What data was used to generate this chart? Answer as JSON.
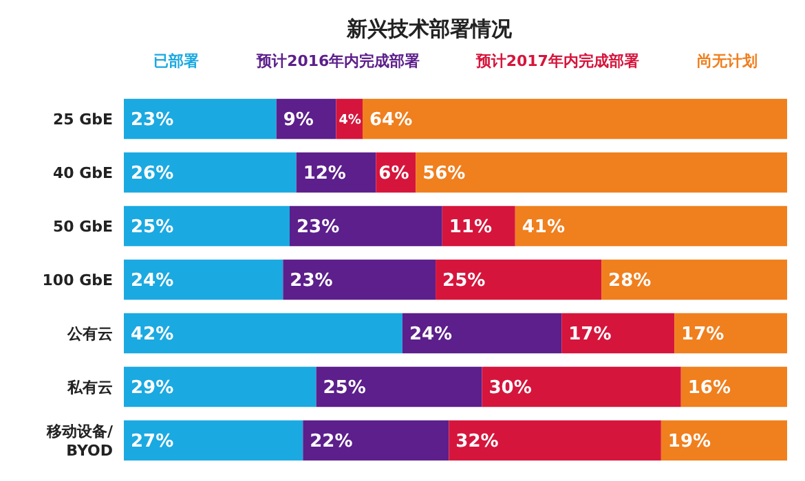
{
  "chart_data": {
    "type": "bar",
    "orientation": "horizontal",
    "stacked": true,
    "title": "新兴技术部署情况",
    "legend": "top",
    "categories": [
      "25 GbE",
      "40 GbE",
      "50 GbE",
      "100 GbE",
      "公有云",
      "私有云",
      "移动设备/BYOD"
    ],
    "series": [
      {
        "name": "已部署",
        "color": "#1ba9e1",
        "values": [
          23,
          26,
          25,
          24,
          42,
          29,
          27
        ],
        "value_labels": [
          "23%",
          "26%",
          "25%",
          "24%",
          "42%",
          "29%",
          "27%"
        ]
      },
      {
        "name": "预计2016年内完成部署",
        "color": "#5c1f8b",
        "values": [
          9,
          12,
          23,
          23,
          24,
          25,
          22
        ],
        "value_labels": [
          "9%",
          "12%",
          "23%",
          "23%",
          "24%",
          "25%",
          "22%"
        ]
      },
      {
        "name": "预计2017年内完成部署",
        "color": "#d6153c",
        "values": [
          4,
          6,
          11,
          25,
          17,
          30,
          32
        ],
        "value_labels": [
          "4%",
          "6%",
          "11%",
          "25%",
          "17%",
          "30%",
          "32%"
        ]
      },
      {
        "name": "尚无计划",
        "color": "#f07f1e",
        "values": [
          64,
          56,
          41,
          28,
          17,
          16,
          19
        ],
        "value_labels": [
          "64%",
          "56%",
          "41%",
          "28%",
          "17%",
          "16%",
          "19%"
        ]
      }
    ]
  }
}
